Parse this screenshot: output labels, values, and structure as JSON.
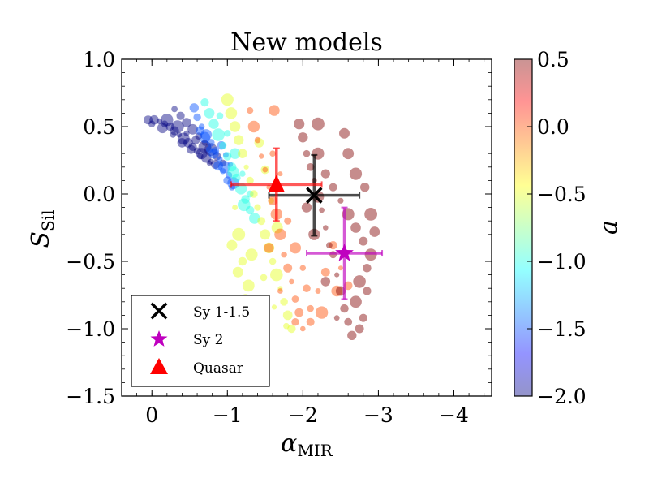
{
  "chart_data": {
    "type": "scatter",
    "title": "New models",
    "xlabel": {
      "symbol": "α",
      "subscript": "MIR"
    },
    "ylabel": {
      "symbol": "S",
      "subscript": "Sil"
    },
    "xlim": [
      0.4,
      -4.5
    ],
    "ylim": [
      -1.5,
      1.0
    ],
    "x_ticks": [
      0,
      -1,
      -2,
      -3,
      -4
    ],
    "x_tick_labels": [
      "0",
      "−1",
      "−2",
      "−3",
      "−4"
    ],
    "y_ticks": [
      1.0,
      0.5,
      0.0,
      -0.5,
      -1.0,
      -1.5
    ],
    "y_tick_labels": [
      "1.0",
      "0.5",
      "0.0",
      "−0.5",
      "−1.0",
      "−1.5"
    ],
    "colorbar": {
      "label": "a",
      "range": [
        -2.0,
        0.5
      ],
      "ticks": [
        0.5,
        0.0,
        -0.5,
        -1.0,
        -1.5,
        -2.0
      ],
      "tick_labels": [
        "0.5",
        "0.0",
        "−0.5",
        "−1.0",
        "−1.5",
        "−2.0"
      ],
      "colormap": "jet"
    },
    "model_clusters": [
      {
        "a": -2.0,
        "points": [
          [
            0.05,
            0.55
          ],
          [
            -0.03,
            0.55
          ],
          [
            -0.1,
            0.54
          ],
          [
            -0.17,
            0.52
          ],
          [
            -0.24,
            0.5
          ],
          [
            -0.3,
            0.47
          ],
          [
            -0.36,
            0.44
          ],
          [
            -0.42,
            0.41
          ],
          [
            -0.48,
            0.38
          ],
          [
            -0.54,
            0.35
          ],
          [
            -0.6,
            0.32
          ],
          [
            -0.66,
            0.3
          ],
          [
            -0.72,
            0.27
          ],
          [
            -0.78,
            0.24
          ],
          [
            -0.84,
            0.22
          ],
          [
            0.0,
            0.52
          ],
          [
            -0.14,
            0.49
          ],
          [
            -0.28,
            0.44
          ],
          [
            -0.4,
            0.38
          ],
          [
            -0.52,
            0.33
          ],
          [
            -0.64,
            0.28
          ],
          [
            -0.76,
            0.23
          ],
          [
            -0.2,
            0.55
          ],
          [
            -0.34,
            0.5
          ],
          [
            -0.46,
            0.45
          ],
          [
            -0.58,
            0.4
          ],
          [
            -0.7,
            0.35
          ],
          [
            -0.3,
            0.63
          ],
          [
            -0.38,
            0.58
          ],
          [
            -0.46,
            0.53
          ],
          [
            -0.54,
            0.48
          ],
          [
            -0.62,
            0.43
          ],
          [
            -0.7,
            0.38
          ],
          [
            -0.78,
            0.33
          ],
          [
            -0.86,
            0.28
          ],
          [
            -0.94,
            0.23
          ]
        ]
      },
      {
        "a": -1.5,
        "points": [
          [
            -0.56,
            0.64
          ],
          [
            -0.6,
            0.57
          ],
          [
            -0.66,
            0.5
          ],
          [
            -0.72,
            0.44
          ],
          [
            -0.78,
            0.38
          ],
          [
            -0.84,
            0.32
          ],
          [
            -0.9,
            0.26
          ],
          [
            -0.96,
            0.2
          ],
          [
            -1.02,
            0.14
          ],
          [
            -1.08,
            0.08
          ],
          [
            -0.64,
            0.47
          ],
          [
            -0.76,
            0.33
          ],
          [
            -0.88,
            0.21
          ],
          [
            -1.0,
            0.1
          ],
          [
            -0.7,
            0.42
          ],
          [
            -0.82,
            0.3
          ],
          [
            -0.94,
            0.17
          ],
          [
            -1.06,
            0.05
          ],
          [
            -0.92,
            0.36
          ],
          [
            -0.98,
            0.29
          ],
          [
            -1.04,
            0.22
          ]
        ]
      },
      {
        "a": -1.0,
        "points": [
          [
            -0.7,
            0.68
          ],
          [
            -0.76,
            0.6
          ],
          [
            -0.82,
            0.52
          ],
          [
            -0.88,
            0.44
          ],
          [
            -0.94,
            0.36
          ],
          [
            -1.0,
            0.28
          ],
          [
            -1.06,
            0.2
          ],
          [
            -1.12,
            0.12
          ],
          [
            -1.18,
            0.04
          ],
          [
            -1.24,
            -0.04
          ],
          [
            -1.3,
            -0.12
          ],
          [
            -0.9,
            0.58
          ],
          [
            -1.0,
            0.45
          ],
          [
            -1.1,
            0.3
          ],
          [
            -1.2,
            0.15
          ],
          [
            -1.3,
            0.0
          ],
          [
            -1.36,
            -0.18
          ],
          [
            -1.08,
            0.16
          ],
          [
            -1.22,
            -0.08
          ]
        ]
      },
      {
        "a": -0.5,
        "points": [
          [
            -1.0,
            0.7
          ],
          [
            -1.05,
            0.6
          ],
          [
            -1.1,
            0.5
          ],
          [
            -1.15,
            0.4
          ],
          [
            -1.2,
            0.3
          ],
          [
            -1.25,
            0.2
          ],
          [
            -1.3,
            0.1
          ],
          [
            -1.35,
            0.0
          ],
          [
            -1.4,
            -0.1
          ],
          [
            -1.45,
            -0.2
          ],
          [
            -1.5,
            -0.3
          ],
          [
            -1.55,
            -0.4
          ],
          [
            -1.6,
            -0.5
          ],
          [
            -1.65,
            -0.6
          ],
          [
            -1.7,
            -0.7
          ],
          [
            -1.75,
            -0.8
          ],
          [
            -1.8,
            -0.9
          ],
          [
            -1.85,
            -1.0
          ],
          [
            -1.1,
            -0.1
          ],
          [
            -1.15,
            -0.3
          ],
          [
            -1.2,
            -0.5
          ],
          [
            -1.28,
            -0.68
          ],
          [
            -1.42,
            0.38
          ],
          [
            -1.5,
            0.18
          ],
          [
            -1.58,
            -0.05
          ],
          [
            -1.66,
            -0.25
          ],
          [
            -1.32,
            -0.45
          ],
          [
            -1.48,
            -0.62
          ],
          [
            -1.62,
            -0.84
          ],
          [
            -1.78,
            -0.98
          ],
          [
            -1.06,
            -0.38
          ],
          [
            -1.14,
            -0.58
          ],
          [
            -1.24,
            -0.78
          ],
          [
            -1.38,
            -0.88
          ]
        ]
      },
      {
        "a": 0.0,
        "points": [
          [
            -1.3,
            0.62
          ],
          [
            -1.35,
            0.5
          ],
          [
            -1.4,
            0.4
          ],
          [
            -1.45,
            0.28
          ],
          [
            -1.5,
            0.18
          ],
          [
            -1.55,
            0.05
          ],
          [
            -1.6,
            -0.05
          ],
          [
            -1.65,
            -0.15
          ],
          [
            -1.7,
            -0.3
          ],
          [
            -1.75,
            -0.45
          ],
          [
            -1.8,
            -0.55
          ],
          [
            -1.85,
            -0.65
          ],
          [
            -1.9,
            -0.78
          ],
          [
            -1.95,
            -0.88
          ],
          [
            -2.0,
            -1.0
          ],
          [
            -2.05,
            -0.7
          ],
          [
            -2.1,
            -0.85
          ],
          [
            -1.8,
            -0.2
          ],
          [
            -1.9,
            -0.4
          ],
          [
            -2.0,
            -0.55
          ],
          [
            -1.6,
            0.3
          ],
          [
            -1.7,
            0.15
          ],
          [
            -1.55,
            -0.4
          ],
          [
            -1.7,
            -0.72
          ],
          [
            -2.1,
            -0.95
          ],
          [
            -2.2,
            -0.72
          ],
          [
            -2.3,
            -0.58
          ],
          [
            -2.4,
            -0.38
          ],
          [
            -2.5,
            -0.55
          ],
          [
            -2.45,
            -0.72
          ],
          [
            -2.6,
            -0.68
          ],
          [
            -1.62,
            0.62
          ],
          [
            -1.9,
            -0.95
          ],
          [
            -2.25,
            -0.88
          ]
        ]
      },
      {
        "a": 0.5,
        "points": [
          [
            -1.95,
            0.52
          ],
          [
            -2.0,
            0.42
          ],
          [
            -2.05,
            0.3
          ],
          [
            -2.1,
            0.2
          ],
          [
            -2.15,
            0.1
          ],
          [
            -2.2,
            -0.02
          ],
          [
            -2.25,
            -0.12
          ],
          [
            -2.3,
            -0.25
          ],
          [
            -2.35,
            -0.38
          ],
          [
            -2.4,
            -0.45
          ],
          [
            -2.45,
            -0.6
          ],
          [
            -2.5,
            -0.72
          ],
          [
            -2.55,
            -0.85
          ],
          [
            -2.6,
            -0.95
          ],
          [
            -2.65,
            -1.05
          ],
          [
            -2.2,
            0.3
          ],
          [
            -2.3,
            0.15
          ],
          [
            -2.4,
            0.05
          ],
          [
            -2.5,
            -0.05
          ],
          [
            -2.6,
            -0.15
          ],
          [
            -2.7,
            -0.25
          ],
          [
            -2.8,
            -0.35
          ],
          [
            -2.9,
            -0.45
          ],
          [
            -2.95,
            -0.28
          ],
          [
            -2.85,
            -0.55
          ],
          [
            -2.75,
            -0.65
          ],
          [
            -2.7,
            -0.8
          ],
          [
            -2.8,
            -0.92
          ],
          [
            -2.75,
            -1.0
          ],
          [
            -2.55,
            0.45
          ],
          [
            -2.6,
            0.3
          ],
          [
            -2.7,
            0.15
          ],
          [
            -2.82,
            0.05
          ],
          [
            -2.2,
            0.52
          ],
          [
            -2.05,
            -0.1
          ],
          [
            -2.15,
            -0.3
          ],
          [
            -2.85,
            -0.72
          ],
          [
            -2.45,
            -0.92
          ],
          [
            -2.9,
            -0.15
          ],
          [
            -2.3,
            -0.65
          ]
        ]
      }
    ],
    "observations": [
      {
        "name": "Sy 1-1.5",
        "marker": "x",
        "color": "#000000",
        "x": -2.15,
        "y": -0.01,
        "xerr": 0.6,
        "yerr": 0.3
      },
      {
        "name": "Sy 2",
        "marker": "star",
        "color": "#bf00bf",
        "x": -2.55,
        "y": -0.44,
        "xerr": 0.5,
        "yerr": 0.34
      },
      {
        "name": "Quasar",
        "marker": "triangle",
        "color": "#ff0000",
        "x": -1.65,
        "y": 0.07,
        "xerr": 0.6,
        "yerr": 0.27
      }
    ],
    "legend": {
      "position": "lower left",
      "entries": [
        "Sy 1-1.5",
        "Sy 2",
        "Quasar"
      ]
    }
  }
}
